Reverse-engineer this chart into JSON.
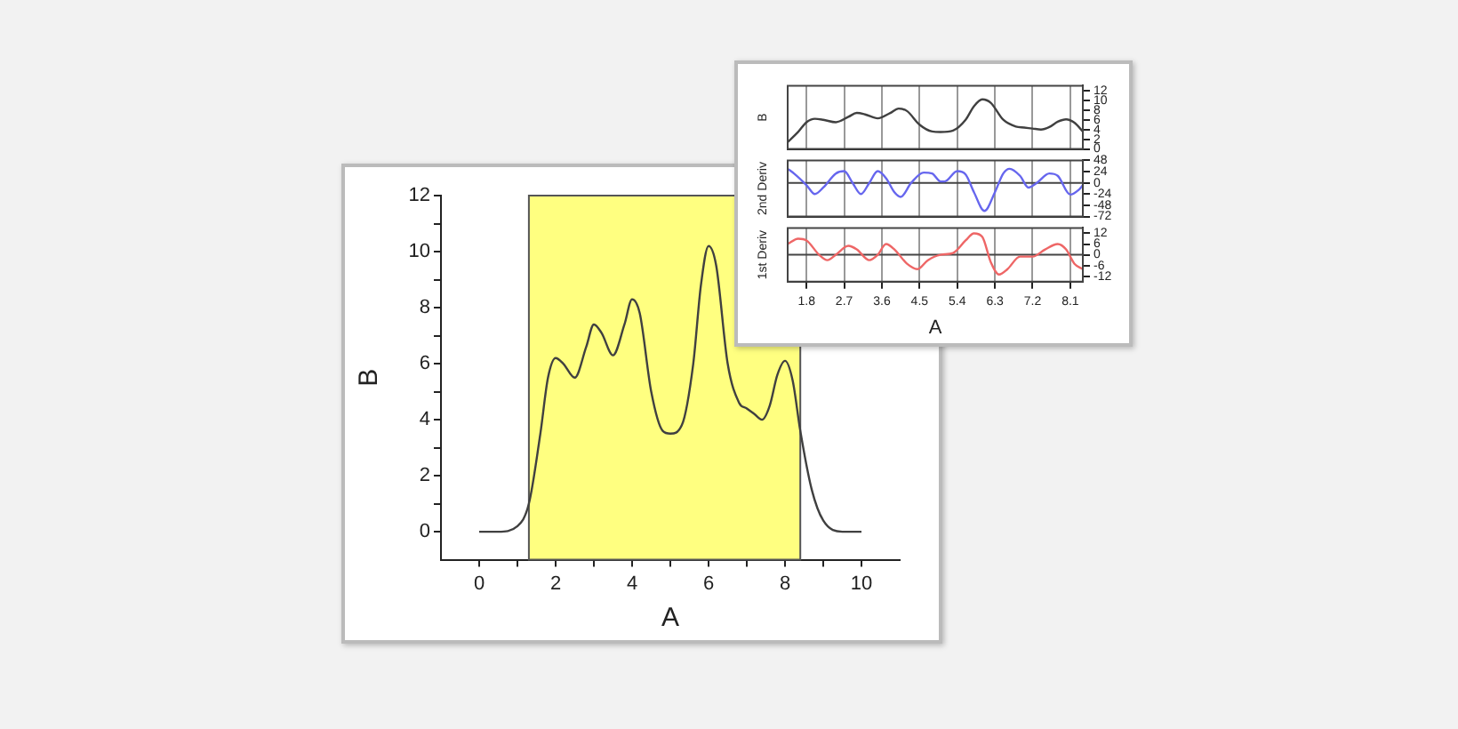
{
  "chart_data": [
    {
      "type": "line",
      "xlabel": "A",
      "ylabel": "B",
      "xlim": [
        -1,
        11
      ],
      "ylim": [
        -1,
        12
      ],
      "xticks": [
        0,
        {
          "value": 1,
          "label": null
        },
        2,
        {
          "value": 3,
          "label": null
        },
        4,
        {
          "value": 5,
          "label": null
        },
        6,
        {
          "value": 7,
          "label": null
        },
        8,
        {
          "value": 9,
          "label": null
        },
        10
      ],
      "yticks": [
        0,
        {
          "value": 1,
          "label": null
        },
        2,
        {
          "value": 3,
          "label": null
        },
        4,
        {
          "value": 5,
          "label": null
        },
        6,
        {
          "value": 7,
          "label": null
        },
        8,
        {
          "value": 9,
          "label": null
        },
        10,
        {
          "value": 11,
          "label": null
        },
        12
      ],
      "bands": [
        {
          "axis": "x",
          "from": 1.3,
          "to": 8.4,
          "color": "#ffff80"
        }
      ],
      "x": [
        0,
        0.5,
        1.0,
        1.3,
        1.6,
        1.8,
        2.0,
        2.2,
        2.5,
        2.8,
        3.0,
        3.2,
        3.5,
        3.8,
        4.0,
        4.2,
        4.5,
        4.8,
        5.0,
        5.3,
        5.6,
        5.8,
        6.0,
        6.2,
        6.5,
        6.8,
        7.0,
        7.2,
        7.4,
        7.6,
        7.8,
        8.0,
        8.2,
        8.4,
        8.7,
        9.0,
        9.5,
        10.0
      ],
      "series": [
        {
          "color": "#404040",
          "values": [
            0,
            0,
            0.2,
            1,
            3.5,
            5.5,
            6.2,
            6.0,
            5.5,
            6.6,
            7.4,
            7.1,
            6.3,
            7.4,
            8.3,
            7.8,
            5.0,
            3.6,
            3.5,
            3.8,
            6.0,
            8.8,
            10.2,
            9.5,
            6.0,
            4.6,
            4.4,
            4.2,
            4.0,
            4.5,
            5.6,
            6.1,
            5.4,
            3.6,
            1.5,
            0.4,
            0,
            0
          ]
        }
      ]
    },
    {
      "type": "line",
      "ylabel": "B",
      "xlim": [
        1.35,
        8.4
      ],
      "ylim": [
        0,
        13
      ],
      "xticks": [
        1.8,
        2.7,
        3.6,
        4.5,
        5.4,
        6.3,
        7.2,
        8.1
      ],
      "yticks": [
        0,
        2,
        4,
        6,
        8,
        10,
        12
      ],
      "grid": "x",
      "tick_labels": "y",
      "x": [
        1.35,
        1.6,
        1.8,
        2.0,
        2.2,
        2.5,
        2.8,
        3.0,
        3.2,
        3.5,
        3.8,
        4.0,
        4.2,
        4.5,
        4.8,
        5.0,
        5.3,
        5.6,
        5.8,
        6.0,
        6.2,
        6.5,
        6.8,
        7.0,
        7.2,
        7.4,
        7.6,
        7.8,
        8.0,
        8.2,
        8.4
      ],
      "series": [
        {
          "color": "#404040",
          "values": [
            1.4,
            3.5,
            5.5,
            6.2,
            6.0,
            5.5,
            6.6,
            7.4,
            7.1,
            6.3,
            7.4,
            8.3,
            7.8,
            5.0,
            3.6,
            3.5,
            3.8,
            6.0,
            8.8,
            10.2,
            9.5,
            6.0,
            4.6,
            4.4,
            4.2,
            4.0,
            4.5,
            5.6,
            6.1,
            5.4,
            3.6
          ]
        }
      ]
    },
    {
      "type": "line",
      "ylabel": "2nd Deriv",
      "xlim": [
        1.35,
        8.4
      ],
      "ylim": [
        -72,
        48
      ],
      "xticks": [
        1.8,
        2.7,
        3.6,
        4.5,
        5.4,
        6.3,
        7.2,
        8.1
      ],
      "yticks": [
        -72,
        -48,
        -24,
        0,
        24,
        48
      ],
      "grid": "x",
      "tick_labels": "y",
      "ref_lines": [
        {
          "axis": "y",
          "value": 0
        }
      ],
      "x": [
        1.35,
        1.5,
        1.8,
        2.0,
        2.2,
        2.5,
        2.7,
        2.9,
        3.1,
        3.3,
        3.5,
        3.7,
        3.9,
        4.05,
        4.3,
        4.6,
        4.8,
        5.0,
        5.1,
        5.4,
        5.6,
        5.8,
        6.05,
        6.3,
        6.5,
        6.65,
        6.9,
        7.1,
        7.3,
        7.6,
        7.8,
        8.1,
        8.3,
        8.4
      ],
      "series": [
        {
          "color": "#6666ee",
          "values": [
            30,
            20,
            -5,
            -24,
            -10,
            20,
            25,
            0,
            -24,
            0,
            25,
            10,
            -20,
            -30,
            0,
            22,
            20,
            3,
            3,
            25,
            18,
            -20,
            -60,
            -20,
            20,
            30,
            15,
            -10,
            0,
            20,
            15,
            -25,
            -15,
            -5
          ]
        }
      ]
    },
    {
      "type": "line",
      "ylabel": "1st Deriv",
      "xlabel": "A",
      "xlim": [
        1.35,
        8.4
      ],
      "ylim": [
        -15,
        15
      ],
      "xticks": [
        1.8,
        2.7,
        3.6,
        4.5,
        5.4,
        6.3,
        7.2,
        8.1
      ],
      "yticks": [
        -12,
        -6,
        0,
        6,
        12
      ],
      "grid": "x",
      "ref_lines": [
        {
          "axis": "y",
          "value": 0
        }
      ],
      "x": [
        1.35,
        1.6,
        1.8,
        2.1,
        2.3,
        2.5,
        2.8,
        3.0,
        3.3,
        3.5,
        3.7,
        3.9,
        4.2,
        4.45,
        4.7,
        5.0,
        5.3,
        5.6,
        5.8,
        6.0,
        6.2,
        6.4,
        6.6,
        6.9,
        7.2,
        7.5,
        7.8,
        8.0,
        8.2,
        8.4
      ],
      "series": [
        {
          "color": "#ee6666",
          "values": [
            6,
            9,
            8,
            0,
            -3,
            0,
            5,
            3,
            -3,
            0,
            6,
            3,
            -5,
            -8,
            -3,
            0,
            1,
            8,
            12,
            10,
            -4,
            -11,
            -8,
            -1,
            -1,
            3,
            6,
            3,
            -5,
            -8
          ]
        }
      ]
    }
  ]
}
